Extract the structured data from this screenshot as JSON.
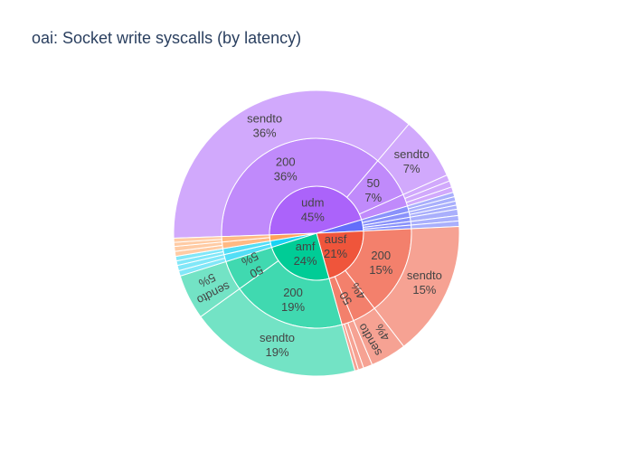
{
  "title": "oai: Socket write syscalls (by latency)",
  "chart_data": {
    "type": "sunburst",
    "title": "oai: Socket write syscalls (by latency)",
    "value_unit": "percent of total",
    "rings": [
      "service",
      "latency bucket",
      "syscall"
    ],
    "colors": {
      "udm": "#ab63fa",
      "ausf": "#ef553b",
      "amf": "#00cc96",
      "misc_cyan": "#19d3f3",
      "misc_blue": "#636efa",
      "misc_orange": "#ffa15a"
    },
    "hierarchy": [
      {
        "name": "udm",
        "value": 45,
        "label": "udm",
        "pct": "45%",
        "color_key": "udm",
        "children": [
          {
            "name": "200",
            "value": 36,
            "label": "200",
            "pct": "36%",
            "children": [
              {
                "name": "sendto",
                "value": 36,
                "label": "sendto",
                "pct": "36%"
              }
            ]
          },
          {
            "name": "50",
            "value": 7,
            "label": "50",
            "pct": "7%",
            "children": [
              {
                "name": "sendto",
                "value": 7,
                "label": "sendto",
                "pct": "7%"
              }
            ]
          },
          {
            "name": "other",
            "value": 2,
            "label": "",
            "pct": "",
            "children": [
              {
                "name": "other-a",
                "value": 0.7,
                "label": "",
                "pct": ""
              },
              {
                "name": "other-b",
                "value": 0.7,
                "label": "",
                "pct": ""
              },
              {
                "name": "other-c",
                "value": 0.6,
                "label": "",
                "pct": ""
              }
            ]
          }
        ]
      },
      {
        "name": "minor-blue",
        "value": 3.8,
        "label": "",
        "pct": "",
        "color_key": "misc_blue",
        "children": [
          {
            "name": "b1",
            "value": 1.0,
            "label": "",
            "pct": "",
            "children": [
              {
                "name": "b1s",
                "value": 0.5,
                "label": "",
                "pct": ""
              },
              {
                "name": "b1t",
                "value": 0.5,
                "label": "",
                "pct": ""
              }
            ]
          },
          {
            "name": "b2",
            "value": 0.9,
            "label": "",
            "pct": "",
            "children": [
              {
                "name": "b2s",
                "value": 0.45,
                "label": "",
                "pct": ""
              },
              {
                "name": "b2t",
                "value": 0.45,
                "label": "",
                "pct": ""
              }
            ]
          },
          {
            "name": "b3",
            "value": 0.7,
            "label": "",
            "pct": "",
            "children": [
              {
                "name": "b3s",
                "value": 0.7,
                "label": "",
                "pct": ""
              }
            ]
          },
          {
            "name": "b4",
            "value": 0.6,
            "label": "",
            "pct": "",
            "children": [
              {
                "name": "b4s",
                "value": 0.6,
                "label": "",
                "pct": ""
              }
            ]
          },
          {
            "name": "b5",
            "value": 0.6,
            "label": "",
            "pct": "",
            "children": [
              {
                "name": "b5s",
                "value": 0.6,
                "label": "",
                "pct": ""
              }
            ]
          }
        ]
      },
      {
        "name": "ausf",
        "value": 21,
        "label": "ausf",
        "pct": "21%",
        "color_key": "ausf",
        "children": [
          {
            "name": "200",
            "value": 15,
            "label": "200",
            "pct": "15%",
            "children": [
              {
                "name": "sendto",
                "value": 15,
                "label": "sendto",
                "pct": "15%"
              }
            ]
          },
          {
            "name": "50",
            "value": 4,
            "label": "50",
            "pct": "4%",
            "children": [
              {
                "name": "sendto",
                "value": 4,
                "label": "sendto",
                "pct": "4%"
              }
            ]
          },
          {
            "name": "other",
            "value": 2,
            "label": "",
            "pct": "",
            "children": [
              {
                "name": "other-a",
                "value": 1.0,
                "label": "",
                "pct": ""
              },
              {
                "name": "other-b",
                "value": 0.6,
                "label": "",
                "pct": ""
              },
              {
                "name": "other-c",
                "value": 0.4,
                "label": "",
                "pct": ""
              }
            ]
          }
        ]
      },
      {
        "name": "amf",
        "value": 24,
        "label": "amf",
        "pct": "24%",
        "color_key": "amf",
        "children": [
          {
            "name": "200",
            "value": 19,
            "label": "200",
            "pct": "19%",
            "children": [
              {
                "name": "sendto",
                "value": 19,
                "label": "sendto",
                "pct": "19%"
              }
            ]
          },
          {
            "name": "50",
            "value": 5,
            "label": "50",
            "pct": "5%",
            "children": [
              {
                "name": "sendto",
                "value": 5,
                "label": "sendto",
                "pct": "5%"
              }
            ]
          }
        ]
      },
      {
        "name": "minor-cyan",
        "value": 2.2,
        "label": "",
        "pct": "",
        "color_key": "misc_cyan",
        "children": [
          {
            "name": "c1",
            "value": 1.2,
            "label": "",
            "pct": "",
            "children": [
              {
                "name": "c1s",
                "value": 0.6,
                "label": "",
                "pct": ""
              },
              {
                "name": "c1t",
                "value": 0.6,
                "label": "",
                "pct": ""
              }
            ]
          },
          {
            "name": "c2",
            "value": 1.0,
            "label": "",
            "pct": "",
            "children": [
              {
                "name": "c2s",
                "value": 0.5,
                "label": "",
                "pct": ""
              },
              {
                "name": "c2t",
                "value": 0.5,
                "label": "",
                "pct": ""
              }
            ]
          }
        ]
      },
      {
        "name": "minor-orange",
        "value": 2.0,
        "label": "",
        "pct": "",
        "color_key": "misc_orange",
        "children": [
          {
            "name": "o1",
            "value": 1.1,
            "label": "",
            "pct": "",
            "children": [
              {
                "name": "o1s",
                "value": 0.55,
                "label": "",
                "pct": ""
              },
              {
                "name": "o1t",
                "value": 0.55,
                "label": "",
                "pct": ""
              }
            ]
          },
          {
            "name": "o2",
            "value": 0.9,
            "label": "",
            "pct": "",
            "children": [
              {
                "name": "o2s",
                "value": 0.45,
                "label": "",
                "pct": ""
              },
              {
                "name": "o2t",
                "value": 0.45,
                "label": "",
                "pct": ""
              }
            ]
          }
        ]
      }
    ]
  }
}
